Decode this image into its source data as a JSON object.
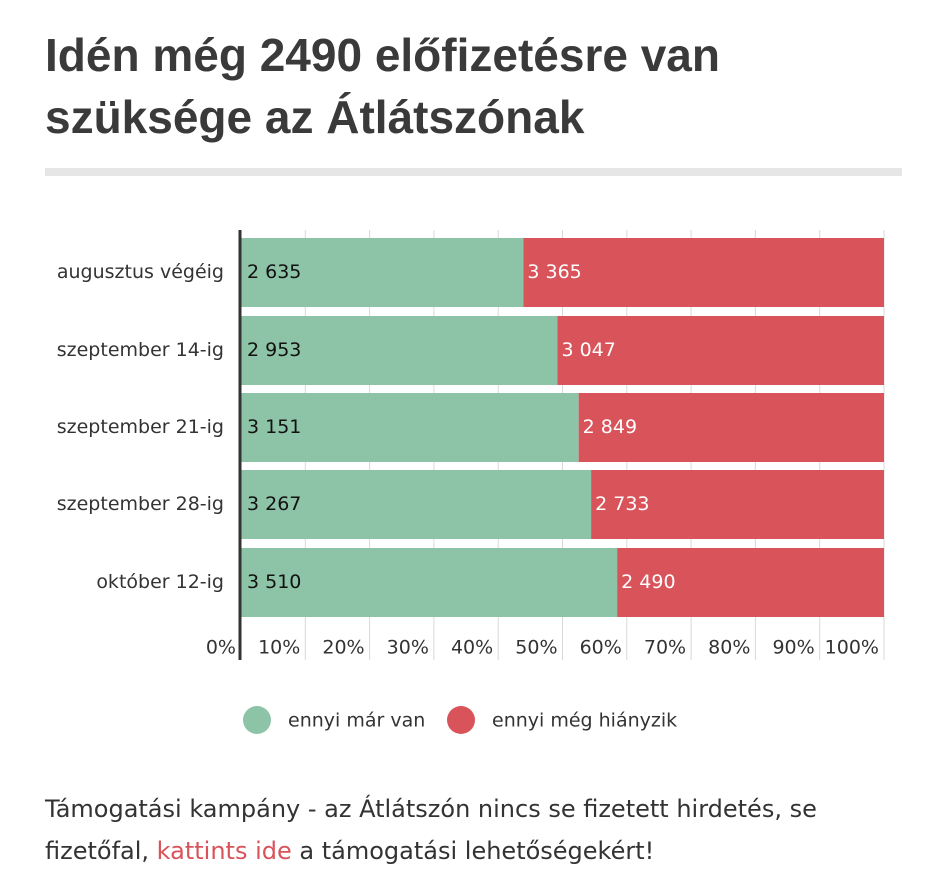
{
  "chart_data": {
    "type": "stacked-barh",
    "title": "Idén még 2490 előfizetésre van szüksége az Átlátszónak",
    "categories": [
      "augusztus végéig",
      "szeptember 14-ig",
      "szeptember 21-ig",
      "szeptember 28-ig",
      "október 12-ig"
    ],
    "series": [
      {
        "name": "ennyi már van",
        "color": "#8dc3a7",
        "values": [
          2635,
          2953,
          3151,
          3267,
          3510
        ],
        "value_labels": [
          "2 635",
          "2 953",
          "3 151",
          "3 267",
          "3 510"
        ]
      },
      {
        "name": "ennyi még hiányzik",
        "color": "#d9535a",
        "values": [
          3365,
          3047,
          2849,
          2733,
          2490
        ],
        "value_labels": [
          "3 365",
          "3 047",
          "2 849",
          "2 733",
          "2 490"
        ]
      }
    ],
    "xlim": [
      0,
      6000
    ],
    "xticks": [
      {
        "value": 0,
        "label": "0%"
      },
      {
        "value": 600,
        "label": "10%"
      },
      {
        "value": 1200,
        "label": "20%"
      },
      {
        "value": 1800,
        "label": "30%"
      },
      {
        "value": 2400,
        "label": "40%"
      },
      {
        "value": 3000,
        "label": "50%"
      },
      {
        "value": 3600,
        "label": "60%"
      },
      {
        "value": 4200,
        "label": "70%"
      },
      {
        "value": 4800,
        "label": "80%"
      },
      {
        "value": 5400,
        "label": "90%"
      },
      {
        "value": 6000,
        "label": "100%"
      }
    ],
    "grid": true,
    "legend": "bottom"
  },
  "footer": {
    "text_before": "Támogatási kampány - az Átlátszón nincs se fizetett hirdetés, se fizetőfal,",
    "link": "kattints ide",
    "text_after": "a támogatási lehetőségekért!"
  }
}
